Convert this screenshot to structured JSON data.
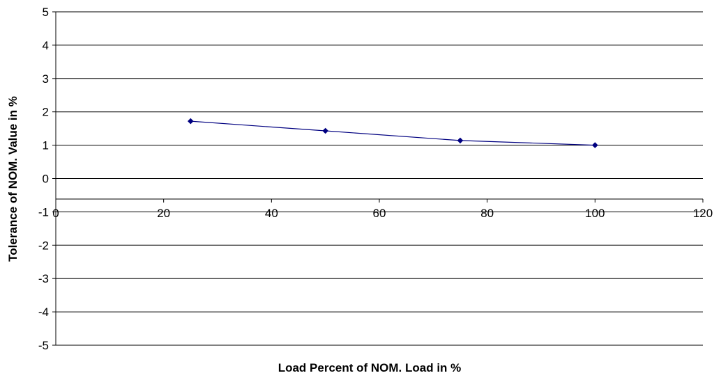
{
  "chart_data": {
    "type": "line",
    "title": "",
    "xlabel": "Load Percent of NOM. Load in %",
    "ylabel": "Tolerance of NOM. Value in %",
    "xlim": [
      0,
      120
    ],
    "ylim": [
      -5,
      5
    ],
    "x_ticks": [
      "0",
      "20",
      "40",
      "60",
      "80",
      "100",
      "120"
    ],
    "y_ticks": [
      "5",
      "4",
      "3",
      "2",
      "1",
      "0",
      "-1",
      "-2",
      "-3",
      "-4",
      "-5"
    ],
    "grid": true,
    "series": [
      {
        "x": [
          25,
          50,
          75,
          100
        ],
        "y": [
          1.72,
          1.43,
          1.14,
          1.0
        ]
      }
    ],
    "colors": {
      "series": "#000080",
      "grid": "#000000",
      "background": "#ffffff"
    }
  }
}
